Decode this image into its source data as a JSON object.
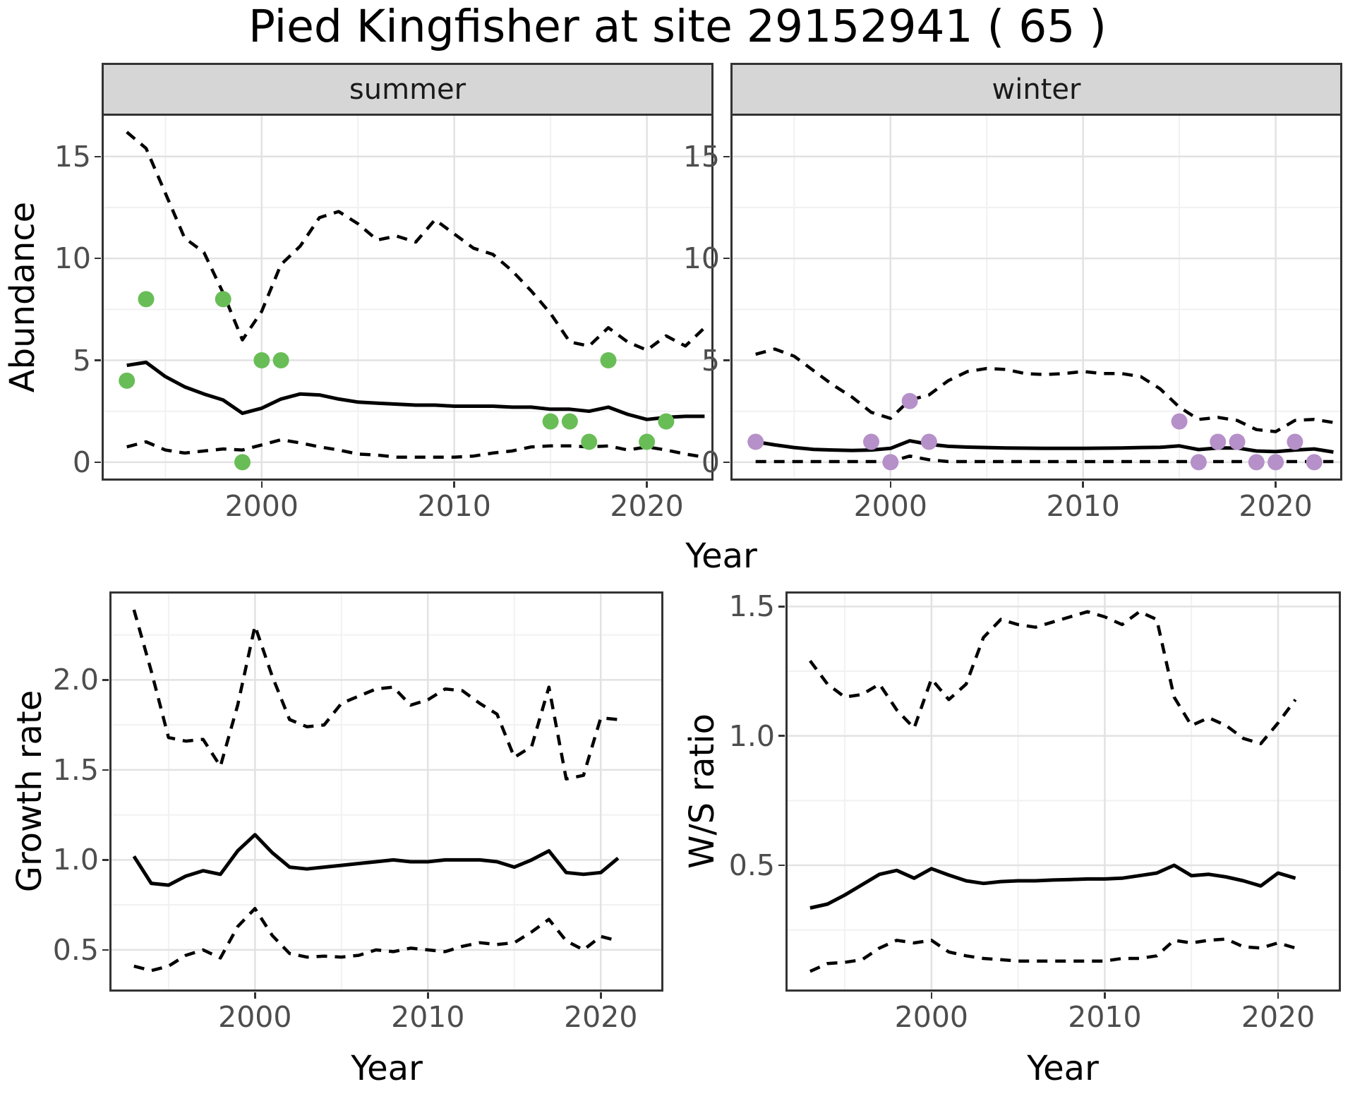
{
  "title": "Pied Kingfisher at site 29152941 ( 65 )",
  "axes": {
    "x_label_top": "Year",
    "x_label_growth": "Year",
    "x_label_ws": "Year",
    "y_label_abundance": "Abundance",
    "y_label_growth": "Growth rate",
    "y_label_ws": "W/S ratio"
  },
  "facets": {
    "summer_label": "summer",
    "winter_label": "winter"
  },
  "colors": {
    "summer_points": "#69bd57",
    "winter_points": "#b690c9",
    "line": "#000000",
    "grid_major": "#e2e2e2",
    "grid_minor": "#f1f1f1",
    "strip_bg": "#d6d6d6",
    "panel_border": "#333333",
    "tick_text": "#4d4d4d"
  },
  "chart_data": [
    {
      "id": "abundance-summer",
      "type": "line",
      "facet": "summer",
      "ylabel": "Abundance",
      "xlabel": "Year",
      "xlim": [
        1991.8,
        2023.35
      ],
      "ylim": [
        -0.8,
        17.0
      ],
      "xticks": {
        "values": [
          2000,
          2010,
          2020
        ],
        "labels": [
          "2000",
          "2010",
          "2020"
        ]
      },
      "xticks_minor": [
        1995,
        2005,
        2015
      ],
      "yticks": {
        "values": [
          0,
          5,
          10,
          15
        ],
        "labels": [
          "0",
          "5",
          "10",
          "15"
        ]
      },
      "yticks_minor": [
        2.5,
        7.5,
        12.5
      ],
      "years": [
        1993,
        1994,
        1995,
        1996,
        1997,
        1998,
        1999,
        2000,
        2001,
        2002,
        2003,
        2004,
        2005,
        2006,
        2007,
        2008,
        2009,
        2010,
        2011,
        2012,
        2013,
        2014,
        2015,
        2016,
        2017,
        2018,
        2019,
        2020,
        2021,
        2022,
        2023
      ],
      "series": [
        {
          "name": "upper-95ci",
          "style": "dashed",
          "values": [
            16.2,
            15.4,
            13.2,
            11.0,
            10.3,
            8.3,
            6.0,
            7.4,
            9.7,
            10.6,
            12.0,
            12.3,
            11.7,
            10.9,
            11.1,
            10.8,
            11.9,
            11.2,
            10.5,
            10.2,
            9.4,
            8.4,
            7.3,
            5.9,
            5.7,
            6.6,
            5.9,
            5.5,
            6.2,
            5.7,
            6.6
          ]
        },
        {
          "name": "median",
          "style": "solid",
          "values": [
            4.75,
            4.9,
            4.2,
            3.7,
            3.35,
            3.05,
            2.4,
            2.65,
            3.1,
            3.35,
            3.3,
            3.1,
            2.95,
            2.9,
            2.85,
            2.8,
            2.8,
            2.75,
            2.75,
            2.75,
            2.7,
            2.7,
            2.6,
            2.6,
            2.5,
            2.7,
            2.35,
            2.1,
            2.2,
            2.25,
            2.25
          ]
        },
        {
          "name": "lower-95ci",
          "style": "dashed",
          "values": [
            0.75,
            1.0,
            0.6,
            0.45,
            0.55,
            0.65,
            0.6,
            0.85,
            1.1,
            0.95,
            0.75,
            0.6,
            0.4,
            0.35,
            0.25,
            0.25,
            0.25,
            0.25,
            0.3,
            0.45,
            0.55,
            0.75,
            0.8,
            0.8,
            0.75,
            0.8,
            0.6,
            0.75,
            0.6,
            0.4,
            0.25
          ]
        }
      ],
      "points": {
        "color_key": "summer_points",
        "data": [
          [
            1993,
            4
          ],
          [
            1994,
            8
          ],
          [
            1998,
            8
          ],
          [
            1999,
            0
          ],
          [
            2000,
            5
          ],
          [
            2001,
            5
          ],
          [
            2015,
            2
          ],
          [
            2016,
            2
          ],
          [
            2017,
            1
          ],
          [
            2018,
            5
          ],
          [
            2020,
            1
          ],
          [
            2021,
            2
          ]
        ]
      }
    },
    {
      "id": "abundance-winter",
      "type": "line",
      "facet": "winter",
      "ylabel": "Abundance",
      "xlabel": "Year",
      "xlim": [
        1991.8,
        2023.35
      ],
      "ylim": [
        -0.8,
        17.0
      ],
      "xticks": {
        "values": [
          2000,
          2010,
          2020
        ],
        "labels": [
          "2000",
          "2010",
          "2020"
        ]
      },
      "xticks_minor": [
        1995,
        2005,
        2015
      ],
      "yticks": {
        "values": [
          0,
          5,
          10,
          15
        ],
        "labels": [
          "0",
          "5",
          "10",
          "15"
        ]
      },
      "yticks_minor": [
        2.5,
        7.5,
        12.5
      ],
      "years": [
        1993,
        1994,
        1995,
        1996,
        1997,
        1998,
        1999,
        2000,
        2001,
        2002,
        2003,
        2004,
        2005,
        2006,
        2007,
        2008,
        2009,
        2010,
        2011,
        2012,
        2013,
        2014,
        2015,
        2016,
        2017,
        2018,
        2019,
        2020,
        2021,
        2022,
        2023
      ],
      "series": [
        {
          "name": "upper-95ci",
          "style": "dashed",
          "values": [
            5.3,
            5.55,
            5.2,
            4.5,
            3.8,
            3.2,
            2.45,
            2.15,
            3.05,
            3.3,
            4.0,
            4.45,
            4.6,
            4.55,
            4.35,
            4.3,
            4.35,
            4.45,
            4.35,
            4.35,
            4.2,
            3.6,
            2.7,
            2.1,
            2.2,
            2.05,
            1.6,
            1.5,
            2.05,
            2.1,
            1.95
          ]
        },
        {
          "name": "median",
          "style": "solid",
          "values": [
            1.0,
            0.85,
            0.72,
            0.63,
            0.6,
            0.58,
            0.6,
            0.68,
            1.05,
            0.88,
            0.78,
            0.74,
            0.72,
            0.7,
            0.69,
            0.68,
            0.68,
            0.68,
            0.69,
            0.7,
            0.72,
            0.73,
            0.8,
            0.62,
            0.7,
            0.7,
            0.55,
            0.52,
            0.6,
            0.65,
            0.5
          ]
        },
        {
          "name": "lower-95ci",
          "style": "dashed",
          "values": [
            0.03,
            0.03,
            0.03,
            0.03,
            0.03,
            0.03,
            0.03,
            0.03,
            0.3,
            0.12,
            0.03,
            0.03,
            0.03,
            0.03,
            0.03,
            0.03,
            0.03,
            0.03,
            0.03,
            0.03,
            0.03,
            0.03,
            0.03,
            0.03,
            0.03,
            0.03,
            0.03,
            0.03,
            0.03,
            0.03,
            0.03
          ]
        }
      ],
      "points": {
        "color_key": "winter_points",
        "data": [
          [
            1993,
            1
          ],
          [
            1999,
            1
          ],
          [
            2000,
            0
          ],
          [
            2001,
            3
          ],
          [
            2002,
            1
          ],
          [
            2015,
            2
          ],
          [
            2016,
            0
          ],
          [
            2017,
            1
          ],
          [
            2018,
            1
          ],
          [
            2019,
            0
          ],
          [
            2020,
            0
          ],
          [
            2021,
            1
          ],
          [
            2022,
            0
          ]
        ]
      }
    },
    {
      "id": "growth-rate",
      "type": "line",
      "facet": null,
      "ylabel": "Growth rate",
      "xlabel": "Year",
      "xlim": [
        1991.7,
        2023.5
      ],
      "ylim": [
        0.28,
        2.48
      ],
      "xticks": {
        "values": [
          2000,
          2010,
          2020
        ],
        "labels": [
          "2000",
          "2010",
          "2020"
        ]
      },
      "xticks_minor": [
        1995,
        2005,
        2015
      ],
      "yticks": {
        "values": [
          0.5,
          1.0,
          1.5,
          2.0
        ],
        "labels": [
          "0.5",
          "1.0",
          "1.5",
          "2.0"
        ]
      },
      "yticks_minor": [
        0.75,
        1.25,
        1.75,
        2.25
      ],
      "years": [
        1993,
        1994,
        1995,
        1996,
        1997,
        1998,
        1999,
        2000,
        2001,
        2002,
        2003,
        2004,
        2005,
        2006,
        2007,
        2008,
        2009,
        2010,
        2011,
        2012,
        2013,
        2014,
        2015,
        2016,
        2017,
        2018,
        2019,
        2020,
        2021
      ],
      "series": [
        {
          "name": "upper-95ci",
          "style": "dashed",
          "values": [
            2.39,
            2.05,
            1.68,
            1.66,
            1.67,
            1.52,
            1.86,
            2.3,
            2.02,
            1.78,
            1.74,
            1.75,
            1.87,
            1.91,
            1.95,
            1.96,
            1.86,
            1.89,
            1.95,
            1.94,
            1.87,
            1.81,
            1.57,
            1.63,
            1.96,
            1.45,
            1.47,
            1.79,
            1.78
          ]
        },
        {
          "name": "median",
          "style": "solid",
          "values": [
            1.02,
            0.87,
            0.86,
            0.91,
            0.94,
            0.92,
            1.05,
            1.14,
            1.04,
            0.96,
            0.95,
            0.96,
            0.97,
            0.98,
            0.99,
            1.0,
            0.99,
            0.99,
            1.0,
            1.0,
            1.0,
            0.99,
            0.96,
            1.0,
            1.05,
            0.93,
            0.92,
            0.93,
            1.01
          ]
        },
        {
          "name": "lower-95ci",
          "style": "dashed",
          "values": [
            0.41,
            0.385,
            0.41,
            0.47,
            0.5,
            0.455,
            0.63,
            0.73,
            0.58,
            0.48,
            0.46,
            0.465,
            0.46,
            0.47,
            0.5,
            0.49,
            0.51,
            0.5,
            0.49,
            0.52,
            0.54,
            0.53,
            0.54,
            0.6,
            0.67,
            0.55,
            0.5,
            0.575,
            0.55
          ]
        }
      ],
      "points": null
    },
    {
      "id": "ws-ratio",
      "type": "line",
      "facet": null,
      "ylabel": "W/S ratio",
      "xlabel": "Year",
      "xlim": [
        1991.7,
        2023.5
      ],
      "ylim": [
        0.02,
        1.55
      ],
      "xticks": {
        "values": [
          2000,
          2010,
          2020
        ],
        "labels": [
          "2000",
          "2010",
          "2020"
        ]
      },
      "xticks_minor": [
        1995,
        2005,
        2015
      ],
      "yticks": {
        "values": [
          0.5,
          1.0,
          1.5
        ],
        "labels": [
          "0.5",
          "1.0",
          "1.5"
        ]
      },
      "yticks_minor": [
        0.25,
        0.75,
        1.25
      ],
      "years": [
        1993,
        1994,
        1995,
        1996,
        1997,
        1998,
        1999,
        2000,
        2001,
        2002,
        2003,
        2004,
        2005,
        2006,
        2007,
        2008,
        2009,
        2010,
        2011,
        2012,
        2013,
        2014,
        2015,
        2016,
        2017,
        2018,
        2019,
        2020,
        2021
      ],
      "series": [
        {
          "name": "upper-95ci",
          "style": "dashed",
          "values": [
            1.29,
            1.2,
            1.15,
            1.16,
            1.2,
            1.1,
            1.03,
            1.22,
            1.14,
            1.2,
            1.38,
            1.45,
            1.43,
            1.42,
            1.44,
            1.46,
            1.48,
            1.46,
            1.43,
            1.48,
            1.45,
            1.15,
            1.04,
            1.07,
            1.04,
            0.99,
            0.97,
            1.05,
            1.14
          ]
        },
        {
          "name": "median",
          "style": "solid",
          "values": [
            0.335,
            0.35,
            0.385,
            0.425,
            0.465,
            0.48,
            0.45,
            0.487,
            0.462,
            0.44,
            0.43,
            0.437,
            0.44,
            0.44,
            0.443,
            0.445,
            0.447,
            0.447,
            0.45,
            0.46,
            0.47,
            0.5,
            0.46,
            0.465,
            0.455,
            0.44,
            0.42,
            0.47,
            0.45
          ]
        },
        {
          "name": "lower-95ci",
          "style": "dashed",
          "values": [
            0.09,
            0.12,
            0.125,
            0.135,
            0.18,
            0.21,
            0.2,
            0.21,
            0.165,
            0.15,
            0.14,
            0.135,
            0.13,
            0.13,
            0.13,
            0.13,
            0.13,
            0.13,
            0.14,
            0.14,
            0.15,
            0.21,
            0.2,
            0.21,
            0.215,
            0.185,
            0.18,
            0.2,
            0.18
          ]
        }
      ],
      "points": null
    }
  ]
}
